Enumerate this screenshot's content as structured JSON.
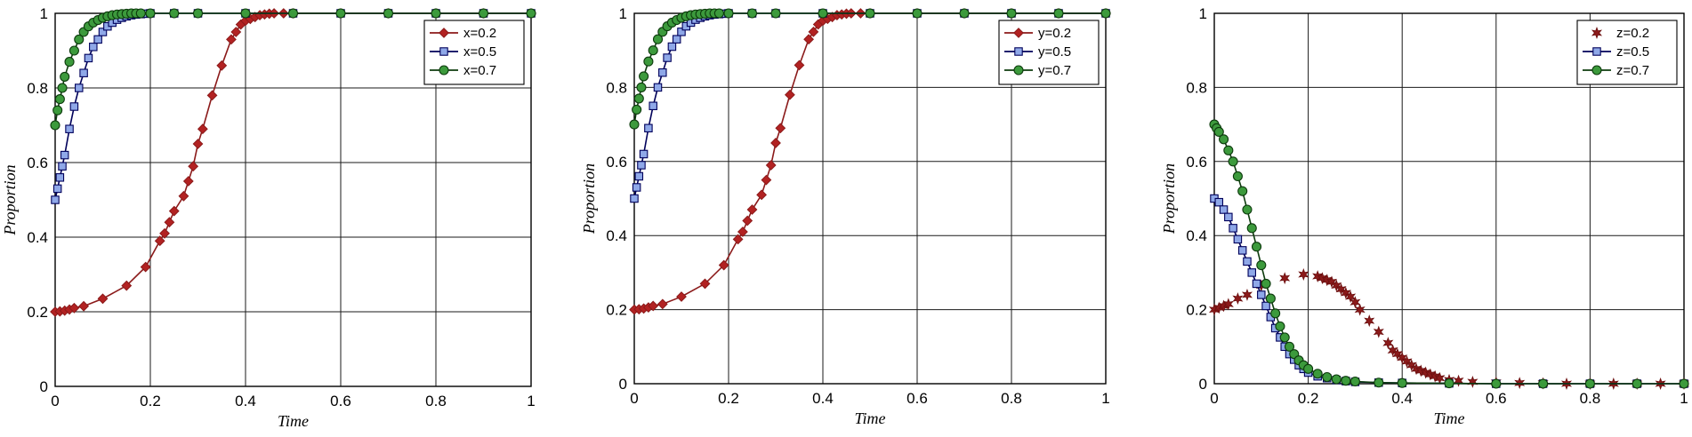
{
  "chart_data": [
    {
      "type": "line",
      "title": "",
      "xlabel": "Time",
      "ylabel": "Proportion",
      "xlim": [
        0,
        1
      ],
      "ylim": [
        0,
        1
      ],
      "grid": true,
      "legend_position": "top-right",
      "xticks": [
        "0",
        "0.2",
        "0.4",
        "0.6",
        "0.8",
        "1"
      ],
      "yticks": [
        "0",
        "0.2",
        "0.4",
        "0.6",
        "0.8",
        "1"
      ],
      "series": [
        {
          "name": "x=0.2",
          "color": "#8b1a1a",
          "marker": "diamond",
          "marker_fill": "#b22222",
          "line": true,
          "x": [
            0,
            0.01,
            0.02,
            0.03,
            0.04,
            0.06,
            0.1,
            0.15,
            0.19,
            0.22,
            0.23,
            0.24,
            0.25,
            0.27,
            0.28,
            0.29,
            0.3,
            0.31,
            0.33,
            0.35,
            0.37,
            0.38,
            0.39,
            0.4,
            0.41,
            0.42,
            0.43,
            0.44,
            0.45,
            0.46,
            0.48,
            0.5,
            0.6,
            0.7,
            0.8,
            0.9,
            1.0
          ],
          "y": [
            0.2,
            0.201,
            0.203,
            0.206,
            0.21,
            0.215,
            0.235,
            0.27,
            0.32,
            0.39,
            0.41,
            0.44,
            0.47,
            0.51,
            0.55,
            0.59,
            0.65,
            0.69,
            0.78,
            0.86,
            0.93,
            0.95,
            0.97,
            0.98,
            0.985,
            0.99,
            0.995,
            0.997,
            0.999,
            1.0,
            1.0,
            1.0,
            1.0,
            1.0,
            1.0,
            1.0,
            1.0
          ]
        },
        {
          "name": "x=0.5",
          "color": "#00005a",
          "marker": "square",
          "marker_fill": "#8fa8e8",
          "line": true,
          "x": [
            0,
            0.005,
            0.01,
            0.015,
            0.02,
            0.03,
            0.04,
            0.05,
            0.06,
            0.07,
            0.08,
            0.09,
            0.1,
            0.11,
            0.12,
            0.13,
            0.14,
            0.15,
            0.16,
            0.17,
            0.18,
            0.19,
            0.2,
            0.25,
            0.3,
            0.4,
            0.5,
            0.6,
            0.7,
            0.8,
            0.9,
            1.0
          ],
          "y": [
            0.5,
            0.53,
            0.56,
            0.59,
            0.62,
            0.69,
            0.75,
            0.8,
            0.84,
            0.88,
            0.91,
            0.93,
            0.95,
            0.965,
            0.975,
            0.983,
            0.988,
            0.992,
            0.995,
            0.997,
            0.998,
            0.999,
            1.0,
            1.0,
            1.0,
            1.0,
            1.0,
            1.0,
            1.0,
            1.0,
            1.0,
            1.0
          ]
        },
        {
          "name": "x=0.7",
          "color": "#0d3b0d",
          "marker": "circle",
          "marker_fill": "#3c9a3c",
          "line": true,
          "x": [
            0,
            0.005,
            0.01,
            0.015,
            0.02,
            0.03,
            0.04,
            0.05,
            0.06,
            0.07,
            0.08,
            0.09,
            0.1,
            0.11,
            0.12,
            0.13,
            0.14,
            0.15,
            0.16,
            0.17,
            0.18,
            0.2,
            0.25,
            0.3,
            0.4,
            0.5,
            0.6,
            0.7,
            0.8,
            0.9,
            1.0
          ],
          "y": [
            0.7,
            0.74,
            0.77,
            0.8,
            0.83,
            0.87,
            0.9,
            0.93,
            0.95,
            0.965,
            0.975,
            0.982,
            0.988,
            0.992,
            0.995,
            0.997,
            0.998,
            0.999,
            1.0,
            1.0,
            1.0,
            1.0,
            1.0,
            1.0,
            1.0,
            1.0,
            1.0,
            1.0,
            1.0,
            1.0,
            1.0
          ]
        }
      ]
    },
    {
      "type": "line",
      "title": "",
      "xlabel": "Time",
      "ylabel": "Proportion",
      "xlim": [
        0,
        1
      ],
      "ylim": [
        0,
        1
      ],
      "grid": true,
      "legend_position": "top-right",
      "xticks": [
        "0",
        "0.2",
        "0.4",
        "0.6",
        "0.8",
        "1"
      ],
      "yticks": [
        "0",
        "0.2",
        "0.4",
        "0.6",
        "0.8",
        "1"
      ],
      "series": [
        {
          "name": "y=0.2",
          "color": "#8b1a1a",
          "marker": "diamond",
          "marker_fill": "#b22222",
          "line": true,
          "x": [
            0,
            0.01,
            0.02,
            0.03,
            0.04,
            0.06,
            0.1,
            0.15,
            0.19,
            0.22,
            0.23,
            0.24,
            0.25,
            0.27,
            0.28,
            0.29,
            0.3,
            0.31,
            0.33,
            0.35,
            0.37,
            0.38,
            0.39,
            0.4,
            0.41,
            0.42,
            0.43,
            0.44,
            0.45,
            0.46,
            0.48,
            0.5,
            0.6,
            0.7,
            0.8,
            0.9,
            1.0
          ],
          "y": [
            0.2,
            0.201,
            0.203,
            0.206,
            0.21,
            0.215,
            0.235,
            0.27,
            0.32,
            0.39,
            0.41,
            0.44,
            0.47,
            0.51,
            0.55,
            0.59,
            0.65,
            0.69,
            0.78,
            0.86,
            0.93,
            0.95,
            0.97,
            0.98,
            0.985,
            0.99,
            0.995,
            0.997,
            0.999,
            1.0,
            1.0,
            1.0,
            1.0,
            1.0,
            1.0,
            1.0,
            1.0
          ]
        },
        {
          "name": "y=0.5",
          "color": "#00005a",
          "marker": "square",
          "marker_fill": "#8fa8e8",
          "line": true,
          "x": [
            0,
            0.005,
            0.01,
            0.015,
            0.02,
            0.03,
            0.04,
            0.05,
            0.06,
            0.07,
            0.08,
            0.09,
            0.1,
            0.11,
            0.12,
            0.13,
            0.14,
            0.15,
            0.16,
            0.17,
            0.18,
            0.19,
            0.2,
            0.25,
            0.3,
            0.4,
            0.5,
            0.6,
            0.7,
            0.8,
            0.9,
            1.0
          ],
          "y": [
            0.5,
            0.53,
            0.56,
            0.59,
            0.62,
            0.69,
            0.75,
            0.8,
            0.84,
            0.88,
            0.91,
            0.93,
            0.95,
            0.965,
            0.975,
            0.983,
            0.988,
            0.992,
            0.995,
            0.997,
            0.998,
            0.999,
            1.0,
            1.0,
            1.0,
            1.0,
            1.0,
            1.0,
            1.0,
            1.0,
            1.0,
            1.0
          ]
        },
        {
          "name": "y=0.7",
          "color": "#0d3b0d",
          "marker": "circle",
          "marker_fill": "#3c9a3c",
          "line": true,
          "x": [
            0,
            0.005,
            0.01,
            0.015,
            0.02,
            0.03,
            0.04,
            0.05,
            0.06,
            0.07,
            0.08,
            0.09,
            0.1,
            0.11,
            0.12,
            0.13,
            0.14,
            0.15,
            0.16,
            0.17,
            0.18,
            0.2,
            0.25,
            0.3,
            0.4,
            0.5,
            0.6,
            0.7,
            0.8,
            0.9,
            1.0
          ],
          "y": [
            0.7,
            0.74,
            0.77,
            0.8,
            0.83,
            0.87,
            0.9,
            0.93,
            0.95,
            0.965,
            0.975,
            0.982,
            0.988,
            0.992,
            0.995,
            0.997,
            0.998,
            0.999,
            1.0,
            1.0,
            1.0,
            1.0,
            1.0,
            1.0,
            1.0,
            1.0,
            1.0,
            1.0,
            1.0,
            1.0,
            1.0
          ]
        }
      ]
    },
    {
      "type": "line",
      "title": "",
      "xlabel": "Time",
      "ylabel": "Proportion",
      "xlim": [
        0,
        1
      ],
      "ylim": [
        0,
        1
      ],
      "grid": true,
      "legend_position": "top-right",
      "xticks": [
        "0",
        "0.2",
        "0.4",
        "0.6",
        "0.8",
        "1"
      ],
      "yticks": [
        "0",
        "0.2",
        "0.4",
        "0.6",
        "0.8",
        "1"
      ],
      "series": [
        {
          "name": "z=0.2",
          "color": "#6b0f0f",
          "marker": "star",
          "marker_fill": "#8b1a1a",
          "line": false,
          "x": [
            0,
            0.01,
            0.02,
            0.03,
            0.05,
            0.07,
            0.1,
            0.15,
            0.19,
            0.22,
            0.23,
            0.24,
            0.25,
            0.26,
            0.27,
            0.28,
            0.29,
            0.3,
            0.31,
            0.33,
            0.35,
            0.37,
            0.38,
            0.39,
            0.4,
            0.41,
            0.42,
            0.43,
            0.44,
            0.45,
            0.46,
            0.47,
            0.48,
            0.5,
            0.52,
            0.55,
            0.6,
            0.65,
            0.7,
            0.75,
            0.8,
            0.85,
            0.9,
            0.95,
            1.0
          ],
          "y": [
            0.2,
            0.205,
            0.21,
            0.215,
            0.23,
            0.24,
            0.265,
            0.285,
            0.295,
            0.29,
            0.285,
            0.28,
            0.275,
            0.265,
            0.255,
            0.245,
            0.235,
            0.22,
            0.2,
            0.17,
            0.14,
            0.11,
            0.09,
            0.08,
            0.07,
            0.06,
            0.05,
            0.04,
            0.035,
            0.03,
            0.025,
            0.02,
            0.015,
            0.01,
            0.008,
            0.005,
            0.003,
            0.002,
            0.001,
            0.0,
            0.0,
            0.0,
            0.0,
            0.0,
            0.0
          ]
        },
        {
          "name": "z=0.5",
          "color": "#00005a",
          "marker": "square",
          "marker_fill": "#8fa8e8",
          "line": true,
          "x": [
            0,
            0.01,
            0.02,
            0.03,
            0.04,
            0.05,
            0.06,
            0.07,
            0.08,
            0.09,
            0.1,
            0.11,
            0.12,
            0.13,
            0.14,
            0.15,
            0.16,
            0.17,
            0.18,
            0.19,
            0.2,
            0.22,
            0.24,
            0.26,
            0.28,
            0.3,
            0.35,
            0.4,
            0.5,
            0.6,
            0.7,
            0.8,
            0.9,
            1.0
          ],
          "y": [
            0.5,
            0.49,
            0.47,
            0.45,
            0.42,
            0.39,
            0.36,
            0.33,
            0.3,
            0.27,
            0.24,
            0.21,
            0.18,
            0.15,
            0.125,
            0.1,
            0.08,
            0.065,
            0.05,
            0.04,
            0.03,
            0.02,
            0.015,
            0.01,
            0.007,
            0.005,
            0.003,
            0.002,
            0.001,
            0.0,
            0.0,
            0.0,
            0.0,
            0.0
          ]
        },
        {
          "name": "z=0.7",
          "color": "#0d3b0d",
          "marker": "circle",
          "marker_fill": "#3c9a3c",
          "line": true,
          "x": [
            0,
            0.005,
            0.01,
            0.02,
            0.03,
            0.04,
            0.05,
            0.06,
            0.07,
            0.08,
            0.09,
            0.1,
            0.11,
            0.12,
            0.13,
            0.14,
            0.15,
            0.16,
            0.17,
            0.18,
            0.19,
            0.2,
            0.22,
            0.24,
            0.26,
            0.28,
            0.3,
            0.35,
            0.4,
            0.5,
            0.6,
            0.7,
            0.8,
            0.9,
            1.0
          ],
          "y": [
            0.7,
            0.69,
            0.68,
            0.66,
            0.63,
            0.6,
            0.56,
            0.52,
            0.47,
            0.42,
            0.37,
            0.32,
            0.27,
            0.23,
            0.19,
            0.155,
            0.125,
            0.1,
            0.08,
            0.063,
            0.05,
            0.04,
            0.027,
            0.018,
            0.012,
            0.008,
            0.006,
            0.003,
            0.002,
            0.001,
            0.0,
            0.0,
            0.0,
            0.0,
            0.0
          ]
        }
      ]
    }
  ]
}
